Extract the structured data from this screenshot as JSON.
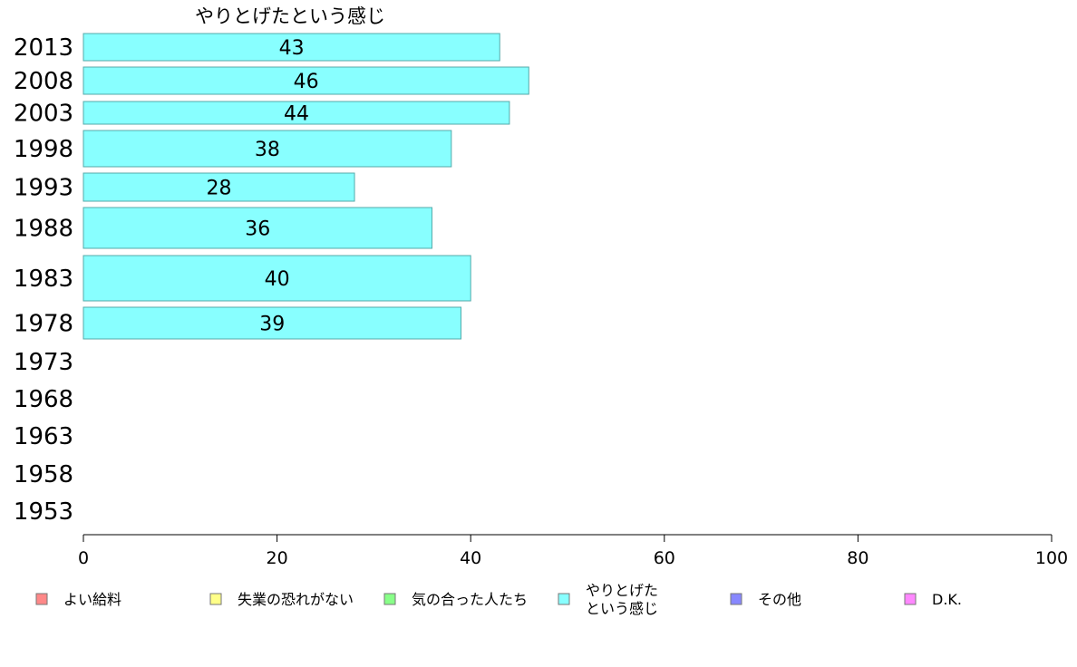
{
  "chart_data": {
    "type": "bar",
    "orientation": "horizontal",
    "title": "やりとげたという感じ",
    "categories": [
      "2013",
      "2008",
      "2003",
      "1998",
      "1993",
      "1988",
      "1983",
      "1978",
      "1973",
      "1968",
      "1963",
      "1958",
      "1953"
    ],
    "values": [
      43,
      46,
      44,
      38,
      28,
      36,
      40,
      39,
      null,
      null,
      null,
      null,
      null
    ],
    "bar_color": "#88ffff",
    "xlim": [
      0,
      100
    ],
    "xticks": [
      "0",
      "20",
      "40",
      "60",
      "80",
      "100"
    ],
    "legend_placement": "bottom",
    "legend": [
      {
        "label": "よい給料",
        "color": "#ff8888"
      },
      {
        "label": "失業の恐れがない",
        "color": "#ffff88"
      },
      {
        "label": "気の合った人たち",
        "color": "#88ff88"
      },
      {
        "label": "やりとげた\nという感じ",
        "color": "#88ffff"
      },
      {
        "label": "その他",
        "color": "#8888ff"
      },
      {
        "label": "D.K.",
        "color": "#ff88ff"
      }
    ]
  }
}
